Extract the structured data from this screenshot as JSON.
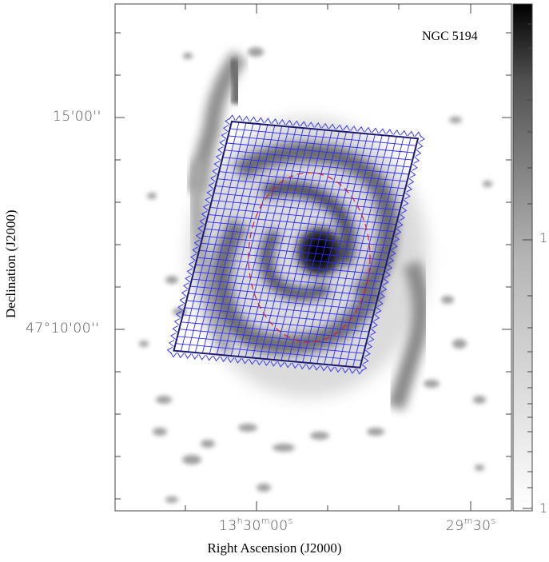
{
  "image": {
    "object_label": "NGC 5194",
    "xlabel": "Right Ascension (J2000)",
    "ylabel": "Declination (J2000)",
    "ra_ticks": [
      {
        "h": "13",
        "m": "30",
        "s": "00",
        "label_parts": [
          "13",
          "h",
          "30",
          "m",
          "00",
          "s"
        ]
      },
      {
        "m": "29",
        "s": "30",
        "label_parts": [
          "29",
          "m",
          "30",
          "s"
        ]
      }
    ],
    "dec_ticks": [
      "15'00''",
      "47°10'00''"
    ],
    "colorbar_ticks": [
      "1",
      "1"
    ],
    "colors": {
      "grid": "#1a1aff",
      "frame": "#1a1a6e",
      "ellipse": "#d0203a",
      "background": "#ffffff"
    }
  }
}
